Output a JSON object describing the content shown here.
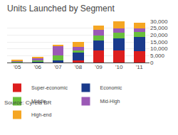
{
  "chart_data": {
    "type": "bar",
    "stacked": true,
    "title": "Units Launched by Segment",
    "categories": [
      "'05",
      "'06",
      "'07",
      "'08",
      "'09",
      "'10",
      "'11"
    ],
    "series": [
      {
        "name": "Super-economic",
        "color": "#dd1e1e",
        "values": [
          0,
          0,
          500,
          1500,
          9000,
          9000,
          8500
        ]
      },
      {
        "name": "Economic",
        "color": "#1a3a8c",
        "values": [
          200,
          500,
          1000,
          5500,
          7000,
          8500,
          10000
        ]
      },
      {
        "name": "Middle",
        "color": "#6abf3c",
        "values": [
          500,
          1200,
          3500,
          2000,
          3500,
          4000,
          3500
        ]
      },
      {
        "name": "Mid-High",
        "color": "#9b59b6",
        "values": [
          700,
          1500,
          7000,
          2500,
          4500,
          3500,
          3000
        ]
      },
      {
        "name": "High-end",
        "color": "#f5a623",
        "values": [
          200,
          500,
          500,
          3500,
          3000,
          5000,
          4000
        ]
      }
    ],
    "ylim": [
      0,
      30000
    ],
    "yticks": [
      0,
      {
        "value": 5000,
        "label": "5,000"
      },
      {
        "value": 10000,
        "label": "10,000"
      },
      {
        "value": 15000,
        "label": "15,000"
      },
      {
        "value": 20000,
        "label": "20,000"
      },
      {
        "value": 25000,
        "label": "25,000"
      },
      {
        "value": 30000,
        "label": "30,000"
      }
    ],
    "grid": true,
    "legend": "lower left",
    "annotations": [
      "Source: Cyrela BR"
    ]
  }
}
